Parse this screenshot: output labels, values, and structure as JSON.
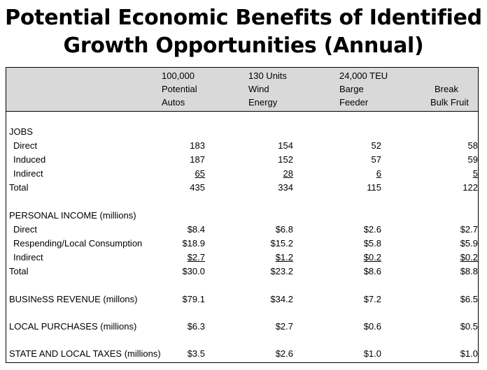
{
  "title_line1": "Potential Economic Benefits of Identified",
  "title_line2": "Growth Opportunities (Annual)",
  "columns": [
    {
      "l1": "100,000",
      "l2": "Potential",
      "l3": "Autos"
    },
    {
      "l1": "130 Units",
      "l2": "Wind",
      "l3": "Energy"
    },
    {
      "l1": "24,000 TEU",
      "l2": "Barge",
      "l3": "Feeder"
    },
    {
      "l1": "",
      "l2": "Break",
      "l3": "Bulk Fruit"
    }
  ],
  "rows": [
    {
      "label": "JOBS",
      "values": [
        "",
        "",
        "",
        ""
      ]
    },
    {
      "label": "Direct",
      "values": [
        "183",
        "154",
        "52",
        "58"
      ]
    },
    {
      "label": "Induced",
      "values": [
        "187",
        "152",
        "57",
        "59"
      ]
    },
    {
      "label": "Indirect",
      "values": [
        "65",
        "28",
        "6",
        "5"
      ]
    },
    {
      "label": "Total",
      "values": [
        "435",
        "334",
        "115",
        "122"
      ]
    },
    {
      "label": "PERSONAL INCOME (millions)",
      "values": [
        "",
        "",
        "",
        ""
      ]
    },
    {
      "label": "Direct",
      "values": [
        "$8.4",
        "$6.8",
        "$2.6",
        "$2.7"
      ]
    },
    {
      "label": "Respending/Local Consumption",
      "values": [
        "$18.9",
        "$15.2",
        "$5.8",
        "$5.9"
      ]
    },
    {
      "label": "Indirect",
      "values": [
        "$2.7",
        "$1.2",
        "$0.2",
        "$0.2"
      ]
    },
    {
      "label": "Total",
      "values": [
        "$30.0",
        "$23.2",
        "$8.6",
        "$8.8"
      ]
    },
    {
      "label": "BUSINeSS REVENUE  (millons)",
      "values": [
        "$79.1",
        "$34.2",
        "$7.2",
        "$6.5"
      ]
    },
    {
      "label": "LOCAL PURCHASES (millions)",
      "values": [
        "$6.3",
        "$2.7",
        "$0.6",
        "$0.5"
      ]
    },
    {
      "label": "STATE AND LOCAL TAXES (millions)",
      "values": [
        "$3.5",
        "$2.6",
        "$1.0",
        "$1.0"
      ]
    }
  ]
}
